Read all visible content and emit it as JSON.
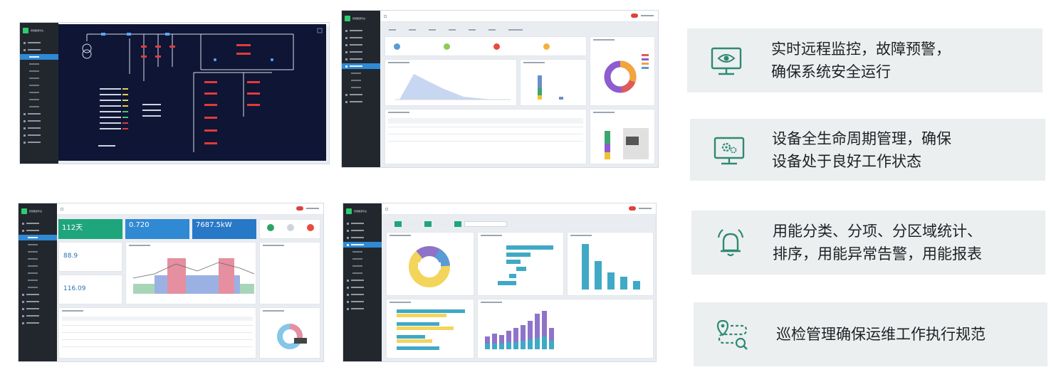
{
  "features": [
    {
      "icon": "monitor-eye-icon",
      "lines": [
        "实时远程监控，故障预警，",
        "确保系统安全运行"
      ]
    },
    {
      "icon": "monitor-gear-icon",
      "lines": [
        "设备全生命周期管理，确保",
        "设备处于良好工作状态"
      ]
    },
    {
      "icon": "bell-alarm-icon",
      "lines": [
        "用能分类、分项、分区域统计、",
        "排序，用能异常告警，用能报表"
      ]
    },
    {
      "icon": "route-search-icon",
      "lines": [
        "巡检管理确保运维工作执行规范"
      ]
    }
  ],
  "colors": {
    "feature_bg": "#eceff0",
    "icon_green": "#2e8a72",
    "sidebar": "#22272e",
    "accent_blue": "#2f89d3",
    "diagram_bg": "#0f1535"
  },
  "screens": {
    "energy_kpis": [
      "112天",
      "0.720",
      "7687.5kW"
    ],
    "energy_side_values": [
      "88.9",
      "116.09"
    ]
  }
}
